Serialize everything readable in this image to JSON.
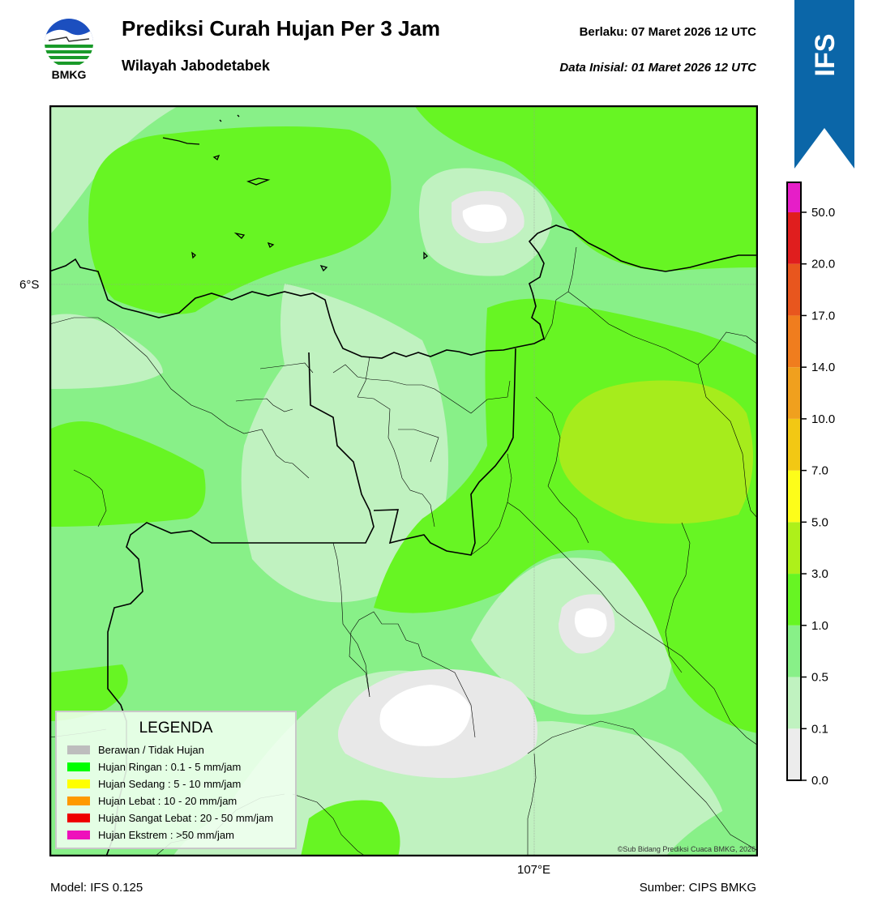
{
  "header": {
    "title": "Prediksi Curah Hujan Per 3 Jam",
    "subtitle": "Wilayah Jabodetabek",
    "valid_label": "Berlaku:  07 Maret 2026 12 UTC",
    "init_label": "Data Inisial:  01 Maret 2026 12 UTC",
    "logo_text": "BMKG"
  },
  "map": {
    "lat_label": "6°S",
    "lon_label": "107°E",
    "copyright": "©Sub Bidang Prediksi Cuaca BMKG, 2026"
  },
  "footer": {
    "model": "Model: IFS 0.125",
    "source": "Sumber: CIPS BMKG"
  },
  "ribbon": {
    "text": "IFS",
    "color": "#0b66a8"
  },
  "colorbar": {
    "ticks": [
      "0.0",
      "0.1",
      "0.5",
      "1.0",
      "3.0",
      "5.0",
      "7.0",
      "10.0",
      "14.0",
      "17.0",
      "20.0",
      "50.0"
    ],
    "colors": [
      "#ececec",
      "#c0f2c0",
      "#88f088",
      "#67f523",
      "#aef01a",
      "#fdfd1a",
      "#f2c814",
      "#f0a01e",
      "#f07d1e",
      "#e8561e",
      "#e01e1e",
      "#e61ec8"
    ]
  },
  "legend": {
    "title": "LEGENDA",
    "items": [
      {
        "label": "Berawan / Tidak Hujan",
        "color": "#bdbdbd"
      },
      {
        "label": "Hujan Ringan : 0.1 - 5 mm/jam",
        "color": "#00ff00"
      },
      {
        "label": "Hujan Sedang : 5 - 10 mm/jam",
        "color": "#ffff00"
      },
      {
        "label": "Hujan Lebat : 10 - 20 mm/jam",
        "color": "#ff9900"
      },
      {
        "label": "Hujan Sangat Lebat : 20 - 50 mm/jam",
        "color": "#ee0000"
      },
      {
        "label": "Hujan Ekstrem : >50 mm/jam",
        "color": "#ee11bb"
      }
    ]
  }
}
